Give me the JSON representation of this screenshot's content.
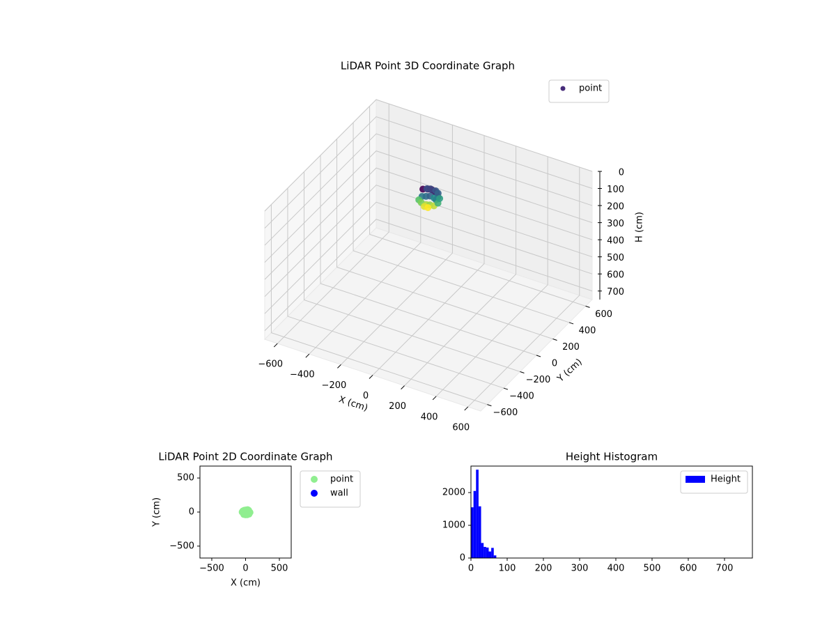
{
  "chart_data": [
    {
      "type": "scatter3d",
      "title": "LiDAR Point 3D Coordinate Graph",
      "xlabel": "X (cm)",
      "ylabel": "Y (cm)",
      "zlabel": "H (cm)",
      "xlim": [
        -680,
        680
      ],
      "ylim": [
        -680,
        680
      ],
      "zlim": [
        750,
        0
      ],
      "xticks": [
        {
          "value": -600,
          "label": "−600"
        },
        {
          "value": -400,
          "label": "−400"
        },
        {
          "value": -200,
          "label": "−200"
        },
        0,
        200,
        400,
        600
      ],
      "yticks": [
        {
          "value": -600,
          "label": "−600"
        },
        {
          "value": -400,
          "label": "−400"
        },
        {
          "value": -200,
          "label": "−200"
        },
        0,
        200,
        400,
        600
      ],
      "zticks": [
        0,
        100,
        200,
        300,
        400,
        500,
        600,
        700
      ],
      "grid": true,
      "cmap": "viridis",
      "legend": "upper right",
      "series": [
        {
          "name": "point",
          "color": "#472c7a",
          "x": [
            -40,
            -20,
            0,
            20,
            40,
            60,
            -30,
            -10,
            10,
            30,
            50,
            -45,
            -25,
            5,
            25,
            45,
            65,
            -35,
            -15,
            15,
            35,
            55,
            0,
            20
          ],
          "y": [
            10,
            30,
            40,
            35,
            20,
            0,
            -20,
            -10,
            0,
            10,
            -5,
            -30,
            -40,
            -35,
            -30,
            -20,
            -10,
            50,
            55,
            60,
            50,
            30,
            -50,
            -45
          ],
          "z": [
            5,
            8,
            10,
            12,
            6,
            15,
            30,
            28,
            25,
            35,
            32,
            50,
            55,
            60,
            58,
            62,
            45,
            20,
            18,
            22,
            25,
            40,
            65,
            68
          ]
        }
      ]
    },
    {
      "type": "scatter",
      "title": "LiDAR Point 2D Coordinate Graph",
      "xlabel": "X (cm)",
      "ylabel": "Y (cm)",
      "xlim": [
        -675,
        675
      ],
      "ylim": [
        -675,
        675
      ],
      "xticks": [
        {
          "value": -500,
          "label": "−500"
        },
        0,
        500
      ],
      "yticks": [
        {
          "value": -500,
          "label": "−500"
        },
        0,
        500
      ],
      "legend": "outside right",
      "series": [
        {
          "name": "point",
          "color": "#90ee90",
          "x": [
            -50,
            -40,
            -30,
            -20,
            -10,
            0,
            10,
            20,
            30,
            40,
            50,
            60,
            -35,
            -15,
            5,
            25,
            45,
            65,
            -25,
            0,
            25,
            50
          ],
          "y": [
            0,
            15,
            -20,
            25,
            -30,
            30,
            -25,
            20,
            35,
            -20,
            10,
            0,
            5,
            -10,
            5,
            -10,
            25,
            -5,
            -35,
            -40,
            -38,
            -30
          ]
        },
        {
          "name": "wall",
          "color": "#0000ff",
          "x": [],
          "y": []
        }
      ]
    },
    {
      "type": "histogram",
      "title": "Height Histogram",
      "xlim": [
        0,
        777
      ],
      "ylim": [
        0,
        2810
      ],
      "xticks": [
        0,
        100,
        200,
        300,
        400,
        500,
        600,
        700
      ],
      "yticks": [
        0,
        1000,
        2000
      ],
      "legend": "upper right",
      "bins": [
        0,
        7,
        14,
        21,
        28,
        35,
        42,
        49,
        56,
        63,
        70
      ],
      "series": [
        {
          "name": "Height",
          "color": "#0000ff",
          "values": [
            1550,
            2050,
            2700,
            1580,
            460,
            340,
            320,
            200,
            310,
            80
          ]
        }
      ]
    }
  ]
}
